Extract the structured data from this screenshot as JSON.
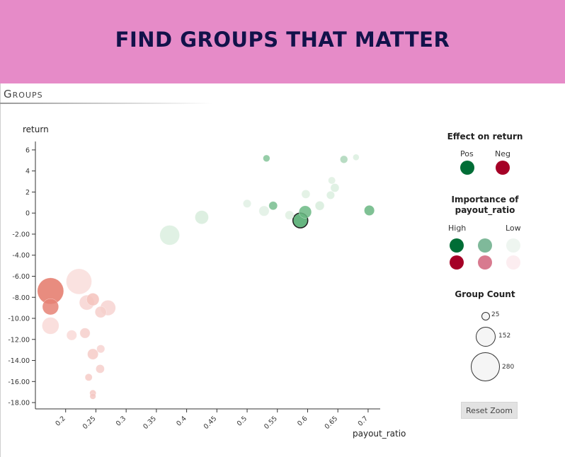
{
  "banner": {
    "title": "FIND GROUPS THAT MATTER",
    "color": "#e68bc8",
    "text_color": "#12124a"
  },
  "section": {
    "title": "Groups"
  },
  "legend": {
    "effect_title": "Effect on return",
    "effect_pos": "Pos",
    "effect_neg": "Neg",
    "importance_title_1": "Importance of",
    "importance_title_2": "payout_ratio",
    "importance_high": "High",
    "importance_low": "Low",
    "count_title": "Group Count",
    "count_values": [
      "25",
      "152",
      "280"
    ],
    "colors": {
      "pos_high": "#006d36",
      "pos_mid": "#7fb99a",
      "pos_low": "#eef5f0",
      "neg_high": "#a50026",
      "neg_mid": "#d87a8f",
      "neg_low": "#fcedf0"
    }
  },
  "reset_zoom_label": "Reset Zoom",
  "chart_data": {
    "type": "scatter",
    "xlabel": "payout_ratio",
    "ylabel": "return",
    "xlim": [
      0.15,
      0.72
    ],
    "ylim": [
      -18.6,
      6.8
    ],
    "xticks": [
      "0.2",
      "0.25",
      "0.3",
      "0.35",
      "0.4",
      "0.45",
      "0.5",
      "0.55",
      "0.6",
      "0.65",
      "0.7"
    ],
    "yticks": [
      "6",
      "4",
      "2",
      "0",
      "-2.00",
      "-4.00",
      "-6.00",
      "-8.00",
      "-10.00",
      "-12.00",
      "-14.00",
      "-16.00",
      "-18.00"
    ],
    "points": [
      {
        "x": 0.532,
        "y": 5.2,
        "size": 18,
        "effect": "pos",
        "importance": 0.55
      },
      {
        "x": 0.66,
        "y": 5.1,
        "size": 22,
        "effect": "pos",
        "importance": 0.35
      },
      {
        "x": 0.68,
        "y": 5.3,
        "size": 15,
        "effect": "pos",
        "importance": 0.1
      },
      {
        "x": 0.64,
        "y": 3.1,
        "size": 20,
        "effect": "pos",
        "importance": 0.08
      },
      {
        "x": 0.645,
        "y": 2.4,
        "size": 28,
        "effect": "pos",
        "importance": 0.1
      },
      {
        "x": 0.638,
        "y": 1.7,
        "size": 25,
        "effect": "pos",
        "importance": 0.1
      },
      {
        "x": 0.597,
        "y": 1.8,
        "size": 28,
        "effect": "pos",
        "importance": 0.08
      },
      {
        "x": 0.62,
        "y": 0.7,
        "size": 32,
        "effect": "pos",
        "importance": 0.12
      },
      {
        "x": 0.5,
        "y": 0.9,
        "size": 25,
        "effect": "pos",
        "importance": 0.07
      },
      {
        "x": 0.543,
        "y": 0.7,
        "size": 28,
        "effect": "pos",
        "importance": 0.62
      },
      {
        "x": 0.528,
        "y": 0.2,
        "size": 40,
        "effect": "pos",
        "importance": 0.07
      },
      {
        "x": 0.596,
        "y": 0.1,
        "size": 60,
        "effect": "pos",
        "importance": 0.68
      },
      {
        "x": 0.57,
        "y": -0.2,
        "size": 30,
        "effect": "pos",
        "importance": 0.08
      },
      {
        "x": 0.588,
        "y": -0.7,
        "size": 85,
        "effect": "pos",
        "importance": 0.85,
        "highlight": true
      },
      {
        "x": 0.702,
        "y": 0.25,
        "size": 40,
        "effect": "pos",
        "importance": 0.7
      },
      {
        "x": 0.425,
        "y": -0.4,
        "size": 70,
        "effect": "pos",
        "importance": 0.12
      },
      {
        "x": 0.372,
        "y": -2.1,
        "size": 150,
        "effect": "pos",
        "importance": 0.1
      },
      {
        "x": 0.222,
        "y": -6.5,
        "size": 250,
        "effect": "neg",
        "importance": 0.1
      },
      {
        "x": 0.175,
        "y": -7.4,
        "size": 265,
        "effect": "neg",
        "importance": 0.68
      },
      {
        "x": 0.175,
        "y": -8.9,
        "size": 100,
        "effect": "neg",
        "importance": 0.62
      },
      {
        "x": 0.235,
        "y": -8.5,
        "size": 85,
        "effect": "neg",
        "importance": 0.15
      },
      {
        "x": 0.245,
        "y": -8.2,
        "size": 60,
        "effect": "neg",
        "importance": 0.25
      },
      {
        "x": 0.27,
        "y": -9.0,
        "size": 90,
        "effect": "neg",
        "importance": 0.15
      },
      {
        "x": 0.258,
        "y": -9.4,
        "size": 50,
        "effect": "neg",
        "importance": 0.18
      },
      {
        "x": 0.175,
        "y": -10.7,
        "size": 110,
        "effect": "neg",
        "importance": 0.12
      },
      {
        "x": 0.21,
        "y": -11.6,
        "size": 40,
        "effect": "neg",
        "importance": 0.12
      },
      {
        "x": 0.232,
        "y": -11.4,
        "size": 40,
        "effect": "neg",
        "importance": 0.18
      },
      {
        "x": 0.258,
        "y": -12.9,
        "size": 25,
        "effect": "neg",
        "importance": 0.15
      },
      {
        "x": 0.245,
        "y": -13.4,
        "size": 45,
        "effect": "neg",
        "importance": 0.2
      },
      {
        "x": 0.257,
        "y": -14.8,
        "size": 28,
        "effect": "neg",
        "importance": 0.18
      },
      {
        "x": 0.238,
        "y": -15.6,
        "size": 20,
        "effect": "neg",
        "importance": 0.2
      },
      {
        "x": 0.245,
        "y": -17.1,
        "size": 16,
        "effect": "neg",
        "importance": 0.22
      },
      {
        "x": 0.245,
        "y": -17.4,
        "size": 14,
        "effect": "neg",
        "importance": 0.22
      }
    ]
  }
}
